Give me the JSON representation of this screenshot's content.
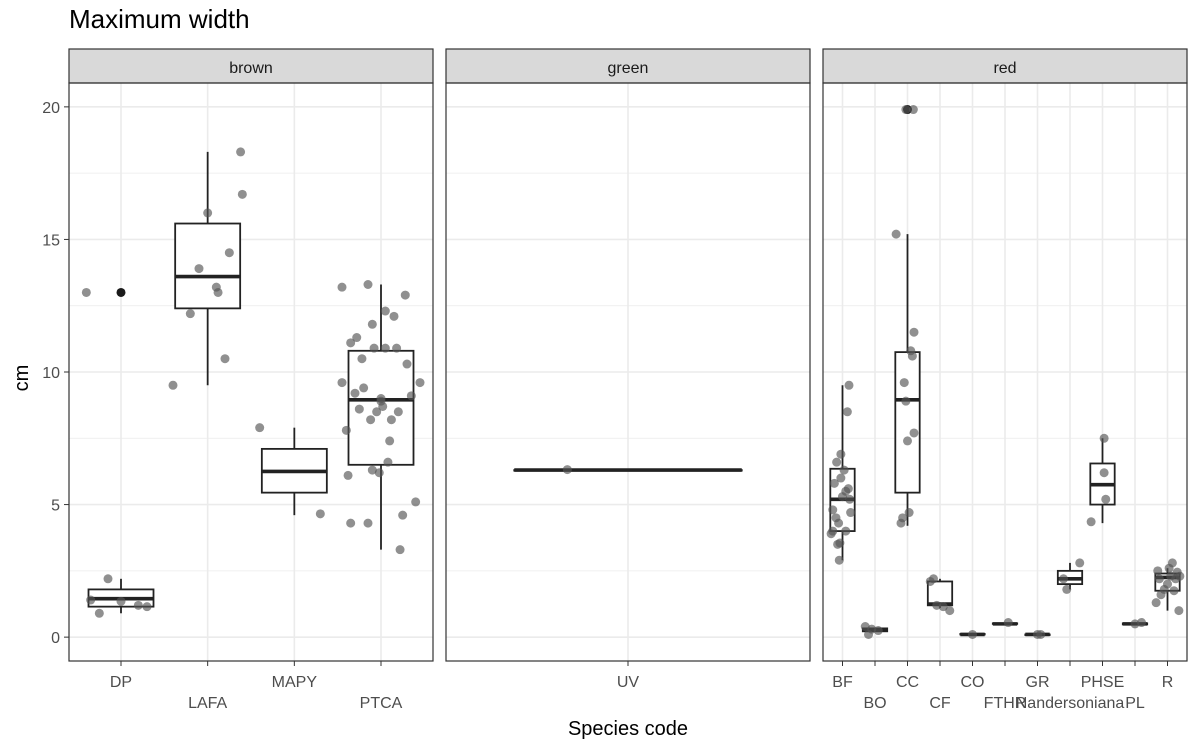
{
  "chart_data": {
    "type": "box",
    "title": "Maximum width",
    "xlabel": "Species code",
    "ylabel": "cm",
    "ylim": [
      -0.9,
      20.9
    ],
    "yticks": [
      0,
      5,
      10,
      15,
      20
    ],
    "grid": true,
    "colors": {
      "strip_fill": "#d9d9d9",
      "panel_border": "#333333",
      "grid": "#ebebeb",
      "box": "#222222",
      "point": "#555555"
    },
    "facets": [
      {
        "label": "brown",
        "categories": [
          {
            "code": "DP",
            "box": {
              "min": 0.9,
              "q1": 1.15,
              "median": 1.45,
              "q3": 1.8,
              "max": 2.2
            },
            "outliers": [
              13.0
            ],
            "points": [
              [
                -0.35,
                1.4
              ],
              [
                -0.25,
                0.9
              ],
              [
                -0.15,
                2.2
              ],
              [
                0.0,
                1.35
              ],
              [
                0.2,
                1.2
              ],
              [
                0.3,
                1.15
              ],
              [
                -0.4,
                13.0
              ]
            ]
          },
          {
            "code": "LAFA",
            "box": {
              "min": 9.5,
              "q1": 12.4,
              "median": 13.6,
              "q3": 15.6,
              "max": 18.3
            },
            "outliers": [],
            "points": [
              [
                -0.4,
                9.5
              ],
              [
                -0.2,
                12.2
              ],
              [
                -0.1,
                13.9
              ],
              [
                0.0,
                16.0
              ],
              [
                0.1,
                13.2
              ],
              [
                0.12,
                13.0
              ],
              [
                0.25,
                14.5
              ],
              [
                0.2,
                10.5
              ],
              [
                0.4,
                16.7
              ],
              [
                0.38,
                18.3
              ]
            ]
          },
          {
            "code": "MAPY",
            "box": {
              "min": 4.6,
              "q1": 5.45,
              "median": 6.25,
              "q3": 7.1,
              "max": 7.9
            },
            "outliers": [],
            "points": [
              [
                -0.4,
                7.9
              ],
              [
                0.3,
                4.65
              ]
            ]
          },
          {
            "code": "PTCA",
            "box": {
              "min": 3.3,
              "q1": 6.5,
              "median": 8.95,
              "q3": 10.8,
              "max": 13.3
            },
            "outliers": [],
            "points": [
              [
                -0.45,
                13.2
              ],
              [
                -0.4,
                7.8
              ],
              [
                -0.38,
                6.1
              ],
              [
                -0.35,
                4.3
              ],
              [
                -0.3,
                9.2
              ],
              [
                -0.35,
                11.1
              ],
              [
                -0.25,
                8.6
              ],
              [
                -0.22,
                10.5
              ],
              [
                -0.2,
                9.4
              ],
              [
                -0.15,
                13.3
              ],
              [
                -0.15,
                4.3
              ],
              [
                -0.1,
                6.3
              ],
              [
                -0.12,
                8.2
              ],
              [
                -0.1,
                11.8
              ],
              [
                -0.08,
                10.9
              ],
              [
                -0.05,
                8.5
              ],
              [
                -0.02,
                6.2
              ],
              [
                0.0,
                9.0
              ],
              [
                0.02,
                8.7
              ],
              [
                0.05,
                12.3
              ],
              [
                0.05,
                10.9
              ],
              [
                0.08,
                6.6
              ],
              [
                0.1,
                7.4
              ],
              [
                0.12,
                8.2
              ],
              [
                0.15,
                12.1
              ],
              [
                0.18,
                10.9
              ],
              [
                0.2,
                8.5
              ],
              [
                0.22,
                3.3
              ],
              [
                0.25,
                4.6
              ],
              [
                0.28,
                12.9
              ],
              [
                0.3,
                10.3
              ],
              [
                0.35,
                9.1
              ],
              [
                0.4,
                5.1
              ],
              [
                0.45,
                9.6
              ],
              [
                -0.45,
                9.6
              ],
              [
                -0.28,
                11.3
              ],
              [
                0.0,
                8.9
              ]
            ]
          }
        ]
      },
      {
        "label": "green",
        "categories": [
          {
            "code": "UV",
            "box": {
              "min": 6.3,
              "q1": 6.3,
              "median": 6.3,
              "q3": 6.3,
              "max": 6.3
            },
            "outliers": [],
            "points": [
              [
                -0.2,
                6.32
              ]
            ]
          }
        ]
      },
      {
        "label": "red",
        "categories": [
          {
            "code": "BF",
            "box": {
              "min": 2.9,
              "q1": 4.0,
              "median": 5.2,
              "q3": 6.35,
              "max": 9.5
            },
            "outliers": [],
            "points": [
              [
                -0.35,
                3.9
              ],
              [
                -0.3,
                4.0
              ],
              [
                -0.25,
                5.8
              ],
              [
                -0.15,
                3.5
              ],
              [
                -0.2,
                4.5
              ],
              [
                -0.18,
                6.6
              ],
              [
                -0.1,
                2.9
              ],
              [
                -0.08,
                3.55
              ],
              [
                -0.05,
                6.9
              ],
              [
                0.0,
                5.3
              ],
              [
                0.05,
                6.3
              ],
              [
                0.1,
                5.5
              ],
              [
                0.15,
                8.5
              ],
              [
                0.2,
                9.5
              ],
              [
                0.22,
                5.2
              ],
              [
                0.25,
                4.7
              ],
              [
                -0.3,
                4.8
              ],
              [
                -0.12,
                4.3
              ],
              [
                0.1,
                4.0
              ],
              [
                -0.05,
                6.0
              ],
              [
                0.18,
                5.6
              ]
            ]
          },
          {
            "code": "BO",
            "box": {
              "min": 0.2,
              "q1": 0.22,
              "median": 0.28,
              "q3": 0.33,
              "max": 0.36
            },
            "outliers": [],
            "points": [
              [
                -0.3,
                0.4
              ],
              [
                -0.2,
                0.1
              ],
              [
                -0.1,
                0.3
              ],
              [
                0.1,
                0.25
              ]
            ]
          },
          {
            "code": "CC",
            "box": {
              "min": 4.2,
              "q1": 5.45,
              "median": 8.95,
              "q3": 10.75,
              "max": 15.2
            },
            "outliers": [
              19.9
            ],
            "points": [
              [
                -0.35,
                15.2
              ],
              [
                -0.2,
                4.3
              ],
              [
                -0.15,
                4.5
              ],
              [
                -0.1,
                9.6
              ],
              [
                -0.05,
                8.9
              ],
              [
                0.0,
                7.4
              ],
              [
                0.05,
                4.7
              ],
              [
                0.1,
                10.8
              ],
              [
                0.15,
                10.6
              ],
              [
                0.2,
                7.7
              ],
              [
                0.2,
                11.5
              ],
              [
                0.18,
                19.9
              ],
              [
                -0.05,
                19.9
              ]
            ]
          },
          {
            "code": "CF",
            "box": {
              "min": 1.1,
              "q1": 1.2,
              "median": 1.25,
              "q3": 2.1,
              "max": 2.2
            },
            "outliers": [],
            "points": [
              [
                -0.3,
                2.1
              ],
              [
                -0.2,
                2.2
              ],
              [
                -0.1,
                1.2
              ],
              [
                0.1,
                1.15
              ],
              [
                0.3,
                1.0
              ]
            ]
          },
          {
            "code": "CO",
            "box": {
              "min": 0.1,
              "q1": 0.1,
              "median": 0.1,
              "q3": 0.12,
              "max": 0.12
            },
            "outliers": [],
            "points": [
              [
                0.0,
                0.1
              ]
            ]
          },
          {
            "code": "FTHR",
            "box": {
              "min": 0.5,
              "q1": 0.5,
              "median": 0.5,
              "q3": 0.52,
              "max": 0.52
            },
            "outliers": [],
            "points": [
              [
                0.1,
                0.55
              ]
            ]
          },
          {
            "code": "GR",
            "box": {
              "min": 0.08,
              "q1": 0.08,
              "median": 0.1,
              "q3": 0.1,
              "max": 0.1
            },
            "outliers": [],
            "points": [
              [
                0.0,
                0.1
              ],
              [
                0.1,
                0.1
              ]
            ]
          },
          {
            "code": "Nandersoniana",
            "box": {
              "min": 1.8,
              "q1": 2.0,
              "median": 2.2,
              "q3": 2.5,
              "max": 2.8
            },
            "outliers": [],
            "points": [
              [
                -0.2,
                2.2
              ],
              [
                -0.1,
                1.8
              ],
              [
                0.3,
                2.8
              ]
            ]
          },
          {
            "code": "PHSE",
            "box": {
              "min": 4.3,
              "q1": 5.0,
              "median": 5.75,
              "q3": 6.55,
              "max": 7.5
            },
            "outliers": [],
            "points": [
              [
                -0.35,
                4.35
              ],
              [
                0.1,
                5.2
              ],
              [
                0.05,
                6.2
              ],
              [
                0.05,
                7.5
              ]
            ]
          },
          {
            "code": "PL",
            "box": {
              "min": 0.48,
              "q1": 0.48,
              "median": 0.5,
              "q3": 0.52,
              "max": 0.52
            },
            "outliers": [],
            "points": [
              [
                0.0,
                0.5
              ],
              [
                0.2,
                0.55
              ]
            ]
          },
          {
            "code": "R",
            "box": {
              "min": 1.0,
              "q1": 1.75,
              "median": 2.25,
              "q3": 2.4,
              "max": 2.6
            },
            "outliers": [],
            "points": [
              [
                -0.35,
                1.3
              ],
              [
                -0.3,
                2.5
              ],
              [
                -0.25,
                2.2
              ],
              [
                -0.2,
                1.6
              ],
              [
                -0.1,
                1.8
              ],
              [
                0.0,
                2.0
              ],
              [
                0.05,
                2.6
              ],
              [
                0.1,
                2.3
              ],
              [
                0.15,
                2.8
              ],
              [
                0.2,
                1.75
              ],
              [
                0.25,
                2.2
              ],
              [
                0.3,
                2.45
              ],
              [
                0.35,
                1.0
              ],
              [
                0.38,
                2.3
              ]
            ]
          }
        ]
      }
    ]
  }
}
